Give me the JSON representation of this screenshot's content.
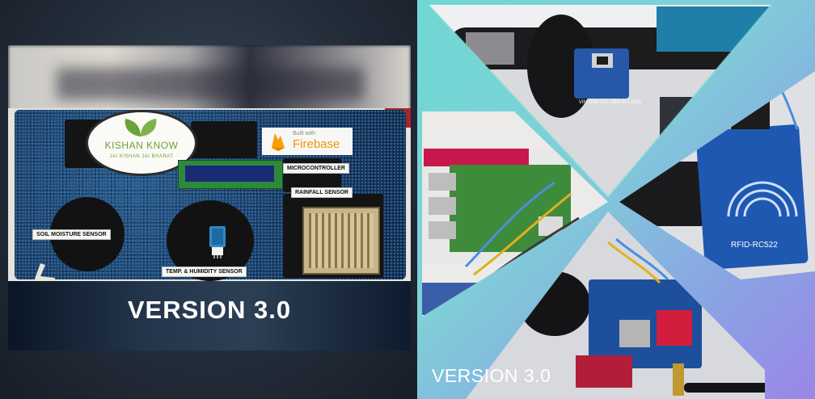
{
  "left_photo": {
    "logo": {
      "title": "KISHAN KNOW",
      "subtitle": "JAI KISHAN  JAI BHARAT"
    },
    "firebase": {
      "small": "Built with",
      "name": "Firebase"
    },
    "labels": {
      "microcontroller": "MICROCONTROLLER",
      "rainfall": "RAINFALL SENSOR",
      "soil": "SOIL MOISTURE SENSOR",
      "temp": "TEMP. & HUMIDITY SENSOR"
    },
    "caption": "VERSION 3.0"
  },
  "right_collage": {
    "sensor_pins": "VIN GND SCL SDA INT ADD",
    "rfid_label": "RFID-RC522",
    "caption": "VERSION 3.0"
  },
  "colors": {
    "collage_gradient_start": "#6fd8d3",
    "collage_gradient_end": "#9a86e8",
    "board_blue": "#1b3f66",
    "firebase_orange": "#f09800",
    "kishan_green": "#6aa23a"
  }
}
